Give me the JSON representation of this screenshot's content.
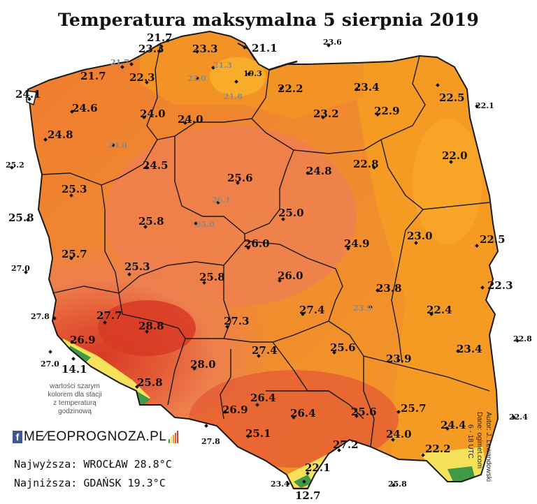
{
  "title": "Temperatura maksymalna 5 sierpnia 2019",
  "colors": {
    "yellow": "#f6e15a",
    "light_orange": "#f8b02a",
    "orange": "#f59a22",
    "dark_orange": "#ef7a2e",
    "salmon": "#ee7f4e",
    "red": "#e45a36",
    "deep_red": "#d83a24",
    "mountain_green": "#3f9a47",
    "sea": "#ffffff",
    "border": "#1a1a1a"
  },
  "stations": [
    {
      "v": "23.3"
    },
    {
      "v": "21.7"
    },
    {
      "v": "21.1"
    },
    {
      "v": "23.6"
    },
    {
      "v": "21.7"
    },
    {
      "v": "23.3"
    },
    {
      "v": "21.3"
    },
    {
      "v": "19.3"
    },
    {
      "v": "21.7"
    },
    {
      "v": "22.3"
    },
    {
      "v": "22.0"
    },
    {
      "v": "22.2"
    },
    {
      "v": "23.4"
    },
    {
      "v": "22.5"
    },
    {
      "v": "24.1"
    },
    {
      "v": "21.8"
    },
    {
      "v": "22.1"
    },
    {
      "v": "24.6"
    },
    {
      "v": "24.0"
    },
    {
      "v": "24.0"
    },
    {
      "v": "23.2"
    },
    {
      "v": "22.9"
    },
    {
      "v": "24.8"
    },
    {
      "v": "24.0"
    },
    {
      "v": "22.0"
    },
    {
      "v": "25.2"
    },
    {
      "v": "24.5"
    },
    {
      "v": "24.8"
    },
    {
      "v": "22.8"
    },
    {
      "v": "25.6"
    },
    {
      "v": "25.3"
    },
    {
      "v": "26.1"
    },
    {
      "v": "25.8"
    },
    {
      "v": "25.8"
    },
    {
      "v": "25.0"
    },
    {
      "v": "25.0"
    },
    {
      "v": "23.0"
    },
    {
      "v": "22.5"
    },
    {
      "v": "26.0"
    },
    {
      "v": "24.9"
    },
    {
      "v": "25.7"
    },
    {
      "v": "27.0"
    },
    {
      "v": "25.3"
    },
    {
      "v": "25.8"
    },
    {
      "v": "26.0"
    },
    {
      "v": "23.8"
    },
    {
      "v": "22.3"
    },
    {
      "v": "27.8"
    },
    {
      "v": "27.7"
    },
    {
      "v": "28.8"
    },
    {
      "v": "27.3"
    },
    {
      "v": "27.4"
    },
    {
      "v": "23.9"
    },
    {
      "v": "22.4"
    },
    {
      "v": "22.8"
    },
    {
      "v": "26.9"
    },
    {
      "v": "25.6"
    },
    {
      "v": "23.4"
    },
    {
      "v": "27.0"
    },
    {
      "v": "14.1"
    },
    {
      "v": "27.4"
    },
    {
      "v": "28.0"
    },
    {
      "v": "23.9"
    },
    {
      "v": "25.8"
    },
    {
      "v": "26.4"
    },
    {
      "v": "26.9"
    },
    {
      "v": "26.4"
    },
    {
      "v": "25.6"
    },
    {
      "v": "25.7"
    },
    {
      "v": "22.4"
    },
    {
      "v": "24.4"
    },
    {
      "v": "27.8"
    },
    {
      "v": "25.1"
    },
    {
      "v": "24.0"
    },
    {
      "v": "27.2"
    },
    {
      "v": "22.2"
    },
    {
      "v": "22.1"
    },
    {
      "v": "23.4"
    },
    {
      "v": "12.7"
    },
    {
      "v": "25.8"
    }
  ],
  "legend_note": [
    "wartości szarym",
    "kolorem dla stacji",
    "z temperaturą",
    "godzinową"
  ],
  "brand": {
    "letter": "f",
    "text": "ME∕EOPROGNOZA.PL"
  },
  "extremes": {
    "max": "Najwyższa: WROCŁAW 28.8°C",
    "min": "Najniższa: GDAŃSK 19.3°C"
  },
  "credits": {
    "author": "Autor: J. Lewandowski",
    "data": "Dane: ogimet.com",
    "period": "6 - 18 UTC"
  }
}
